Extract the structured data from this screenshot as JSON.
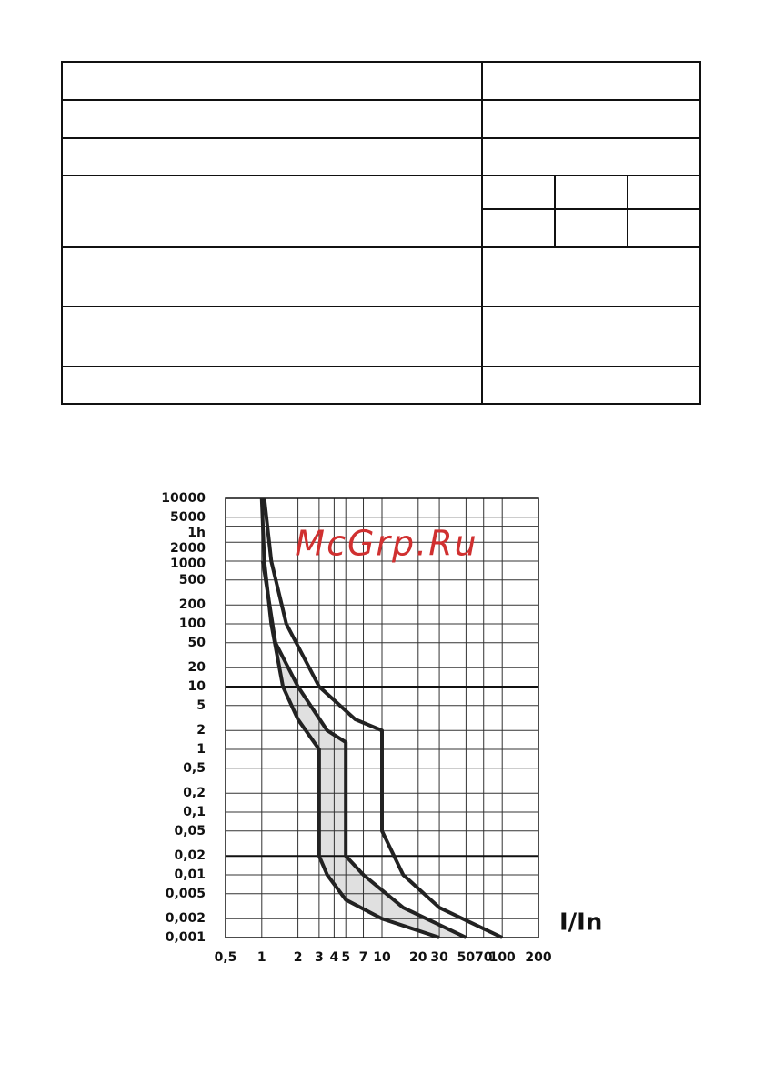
{
  "chart_data": {
    "type": "line",
    "watermark": "McGrp.Ru",
    "xlabel": "I/In",
    "xscale": "log",
    "yscale": "log",
    "xlim": [
      0.5,
      200
    ],
    "ylim": [
      0.001,
      10000
    ],
    "xticks": [
      {
        "value": 0.5,
        "label": "0,5"
      },
      1,
      2,
      3,
      4,
      5,
      7,
      10,
      20,
      30,
      50,
      70,
      100,
      200
    ],
    "yticks": [
      10000,
      5000,
      {
        "value": 3600,
        "label": "1h"
      },
      2000,
      1000,
      500,
      200,
      100,
      50,
      20,
      10,
      5,
      2,
      1,
      {
        "value": 0.5,
        "label": "0,5"
      },
      {
        "value": 0.2,
        "label": "0,2"
      },
      {
        "value": 0.1,
        "label": "0,1"
      },
      {
        "value": 0.05,
        "label": "0,05"
      },
      {
        "value": 0.02,
        "label": "0,02"
      },
      {
        "value": 0.01,
        "label": "0,01"
      },
      {
        "value": 0.005,
        "label": "0,005"
      },
      {
        "value": 0.002,
        "label": "0,002"
      },
      {
        "value": 0.001,
        "label": "0,001"
      }
    ],
    "grid": true,
    "major_grid": [
      10,
      0.02
    ],
    "band_color": "#e0e0e0",
    "series": [
      {
        "color": "#222222",
        "x": [
          1,
          1.05,
          1.2,
          1.5,
          2,
          3,
          3,
          3.5,
          5,
          10,
          30
        ],
        "values": [
          10000,
          1000,
          100,
          10,
          3,
          1,
          0.02,
          0.01,
          0.004,
          0.002,
          0.001
        ]
      },
      {
        "color": "#222222",
        "x": [
          1.02,
          1.3,
          2,
          3.5,
          5,
          5,
          7,
          15,
          50
        ],
        "values": [
          1000,
          50,
          10,
          2,
          1.3,
          0.02,
          0.01,
          0.003,
          0.001
        ]
      },
      {
        "color": "#222222",
        "x": [
          1.05,
          1.2,
          1.6,
          3,
          6,
          10,
          10,
          15,
          30,
          100
        ],
        "values": [
          10000,
          1000,
          100,
          10,
          3,
          2,
          0.05,
          0.01,
          0.003,
          0.001
        ]
      }
    ]
  }
}
